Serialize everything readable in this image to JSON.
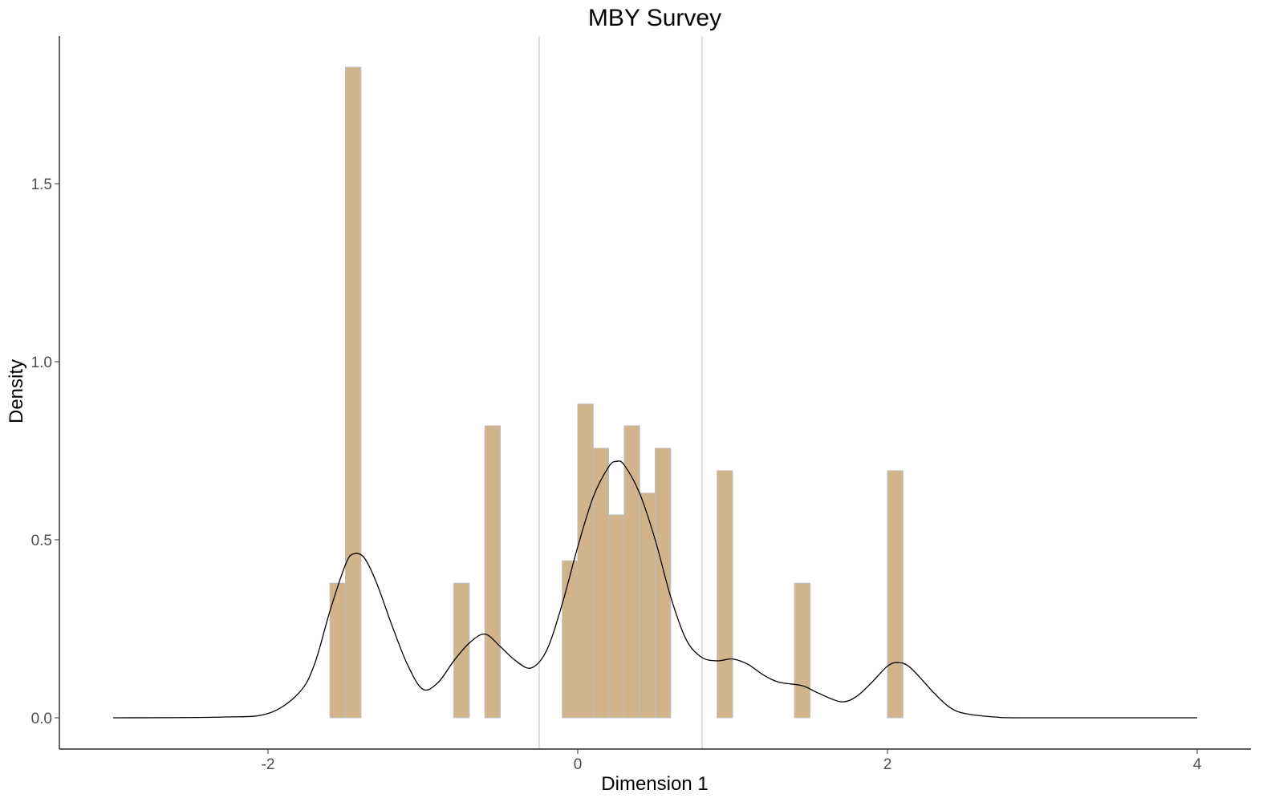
{
  "chart_data": {
    "type": "bar",
    "title": "MBY Survey",
    "xlabel": "Dimension 1",
    "ylabel": "Density",
    "xlim": [
      -3.3,
      4.25
    ],
    "ylim": [
      -0.085,
      1.92
    ],
    "x_ticks": [
      -2,
      0,
      2,
      4
    ],
    "x_tick_labels": [
      "-2",
      "0",
      "2",
      "4"
    ],
    "y_ticks": [
      0,
      0.5,
      1,
      1.5
    ],
    "y_tick_labels": [
      "0.0",
      "0.5",
      "1.0",
      "1.5"
    ],
    "grid": false,
    "bin_width": 0.1,
    "histogram": {
      "bin_starts": [
        -1.6,
        -1.5,
        -0.8,
        -0.6,
        -0.1,
        0.0,
        0.1,
        0.2,
        0.3,
        0.4,
        0.5,
        0.9,
        1.4,
        2.0
      ],
      "densities": [
        0.378,
        1.827,
        0.378,
        0.82,
        0.441,
        0.881,
        0.757,
        0.57,
        0.82,
        0.631,
        0.757,
        0.694,
        0.378,
        0.694
      ],
      "fill": "#D2B48C",
      "outline": "#BEBEBE"
    },
    "density_curve": {
      "x": [
        -3,
        -2.3,
        -2.0,
        -1.8,
        -1.7,
        -1.6,
        -1.5,
        -1.45,
        -1.38,
        -1.3,
        -1.2,
        -1.1,
        -1.0,
        -0.9,
        -0.8,
        -0.7,
        -0.6,
        -0.5,
        -0.4,
        -0.3,
        -0.2,
        -0.1,
        0.0,
        0.1,
        0.2,
        0.25,
        0.3,
        0.4,
        0.5,
        0.6,
        0.7,
        0.8,
        0.9,
        1.0,
        1.1,
        1.2,
        1.3,
        1.45,
        1.55,
        1.7,
        1.8,
        1.9,
        2.0,
        2.07,
        2.15,
        2.3,
        2.4,
        2.5,
        2.7,
        2.9,
        4
      ],
      "y": [
        0,
        0.002,
        0.012,
        0.07,
        0.15,
        0.3,
        0.43,
        0.46,
        0.45,
        0.38,
        0.26,
        0.15,
        0.08,
        0.1,
        0.16,
        0.21,
        0.235,
        0.2,
        0.16,
        0.14,
        0.19,
        0.32,
        0.48,
        0.62,
        0.705,
        0.72,
        0.71,
        0.63,
        0.5,
        0.34,
        0.22,
        0.17,
        0.16,
        0.165,
        0.15,
        0.12,
        0.1,
        0.09,
        0.07,
        0.045,
        0.06,
        0.1,
        0.145,
        0.155,
        0.14,
        0.07,
        0.03,
        0.012,
        0.002,
        0,
        0
      ],
      "color": "#000000"
    },
    "vlines": {
      "x": [
        -0.249,
        0.803
      ],
      "color": "#BEBEBE"
    }
  }
}
